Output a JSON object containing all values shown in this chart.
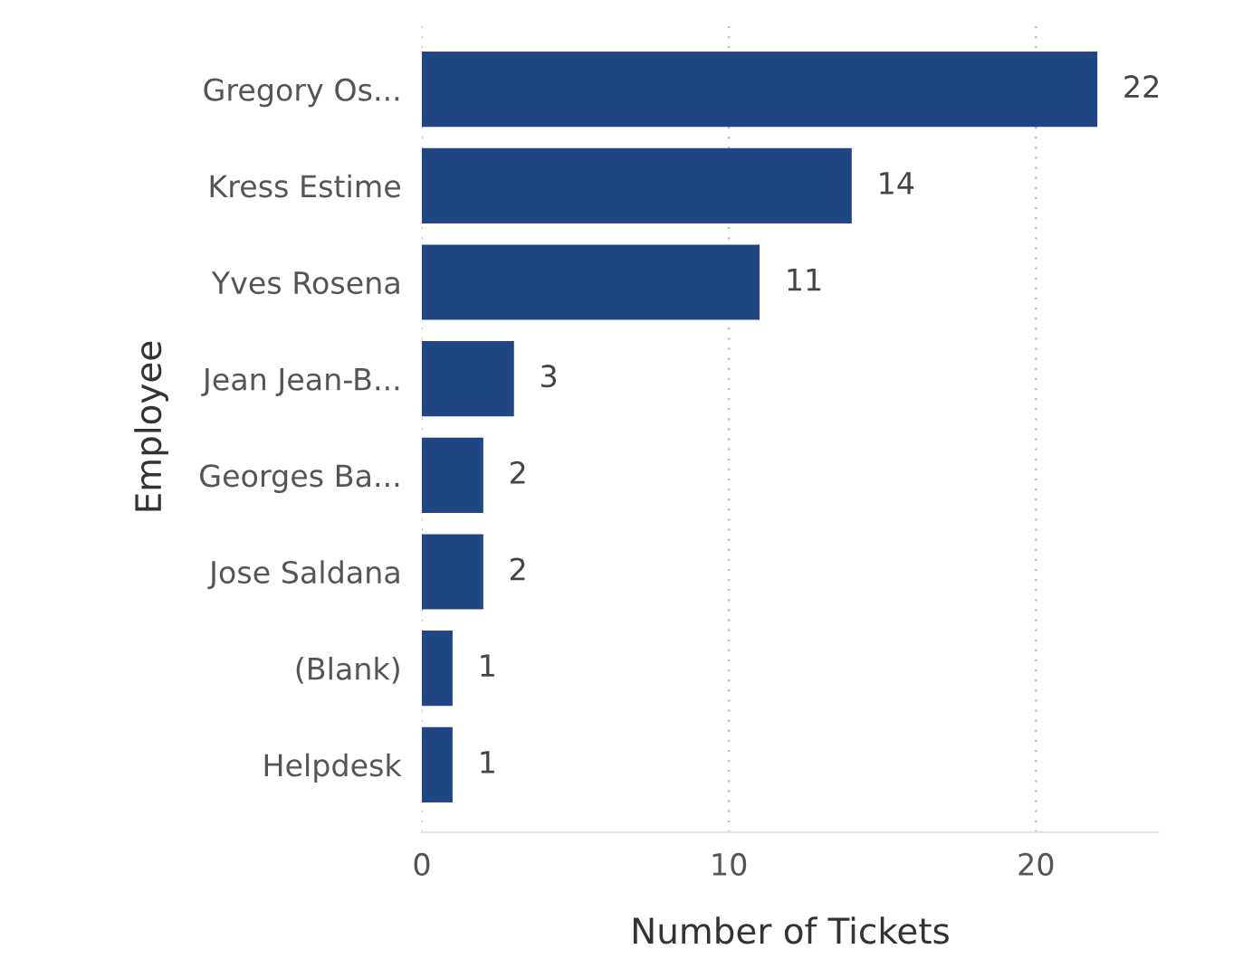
{
  "chart_data": {
    "type": "bar",
    "orientation": "horizontal",
    "categories": [
      "Gregory Os...",
      "Kress Estime",
      "Yves Rosena",
      "Jean Jean-B...",
      "Georges Ba...",
      "Jose Saldana",
      "(Blank)",
      "Helpdesk"
    ],
    "values": [
      22,
      14,
      11,
      3,
      2,
      2,
      1,
      1
    ],
    "color": "#1f4582",
    "xlim": [
      0,
      24
    ],
    "xticks": [
      0,
      10,
      20
    ],
    "xlabel": "Number of Tickets",
    "ylabel": "Employee",
    "data_labels": true,
    "grid": "x",
    "legend": false
  }
}
